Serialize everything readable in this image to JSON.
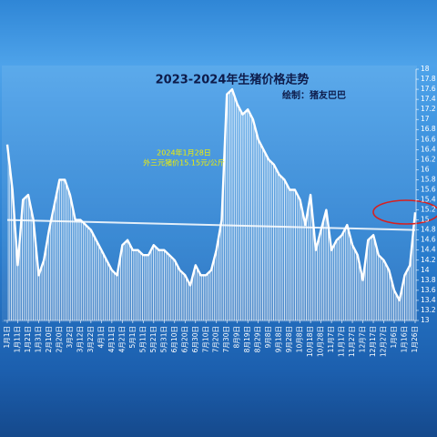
{
  "chart_data": {
    "type": "area-line",
    "title": "2023-2024年生猪价格走势",
    "subtitle": "绘制：猪友巴巴",
    "annotations": [
      "2024年1月28日",
      "外三元猪价15.15元/公斤"
    ],
    "categories": [
      "1月1日",
      null,
      "1月11日",
      null,
      "1月21日",
      null,
      "1月31日",
      null,
      "2月10日",
      null,
      "2月20日",
      null,
      "3月2日",
      null,
      "3月12日",
      null,
      "3月22日",
      null,
      "4月1日",
      null,
      "4月11日",
      null,
      "4月21日",
      null,
      "5月1日",
      null,
      "5月11日",
      null,
      "5月21日",
      null,
      "5月31日",
      null,
      "6月10日",
      null,
      "6月20日",
      null,
      "6月30日",
      null,
      "7月10日",
      null,
      "7月20日",
      null,
      "7月30日",
      null,
      "8月9日",
      null,
      "8月19日",
      null,
      "8月29日",
      null,
      "9月8日",
      null,
      "9月18日",
      null,
      "9月28日",
      null,
      "10月8日",
      null,
      "10月18日",
      null,
      "10月28日",
      null,
      "11月7日",
      null,
      "11月17日",
      null,
      "11月27日",
      null,
      "12月7日",
      null,
      "12月17日",
      null,
      "12月27日",
      null,
      "1月6日",
      null,
      "1月16日",
      null,
      "1月26日"
    ],
    "values": [
      16.5,
      15.6,
      14.1,
      15.4,
      15.5,
      15.0,
      13.9,
      14.2,
      14.8,
      15.3,
      15.8,
      15.8,
      15.5,
      15.0,
      15.0,
      14.9,
      14.8,
      14.6,
      14.4,
      14.2,
      14.0,
      13.9,
      14.5,
      14.6,
      14.4,
      14.4,
      14.3,
      14.3,
      14.5,
      14.4,
      14.4,
      14.3,
      14.2,
      14.0,
      13.9,
      13.7,
      14.1,
      13.9,
      13.9,
      14.0,
      14.4,
      15.0,
      17.5,
      17.6,
      17.3,
      17.1,
      17.2,
      17.0,
      16.6,
      16.4,
      16.2,
      16.1,
      15.9,
      15.8,
      15.6,
      15.6,
      15.4,
      14.9,
      15.5,
      14.4,
      14.8,
      15.2,
      14.4,
      14.6,
      14.7,
      14.9,
      14.5,
      14.3,
      13.8,
      14.6,
      14.7,
      14.3,
      14.2,
      14.0,
      13.6,
      13.4,
      13.9,
      14.1,
      15.15
    ],
    "trend": [
      15.0,
      14.8
    ],
    "color": "#ffffff",
    "ylim": [
      13,
      18
    ],
    "yticks": [
      13,
      13.2,
      13.4,
      13.6,
      13.8,
      14,
      14.2,
      14.4,
      14.6,
      14.8,
      15,
      15.2,
      15.4,
      15.6,
      15.8,
      16,
      16.2,
      16.4,
      16.6,
      16.8,
      17,
      17.2,
      17.4,
      17.6,
      17.8,
      18
    ]
  }
}
